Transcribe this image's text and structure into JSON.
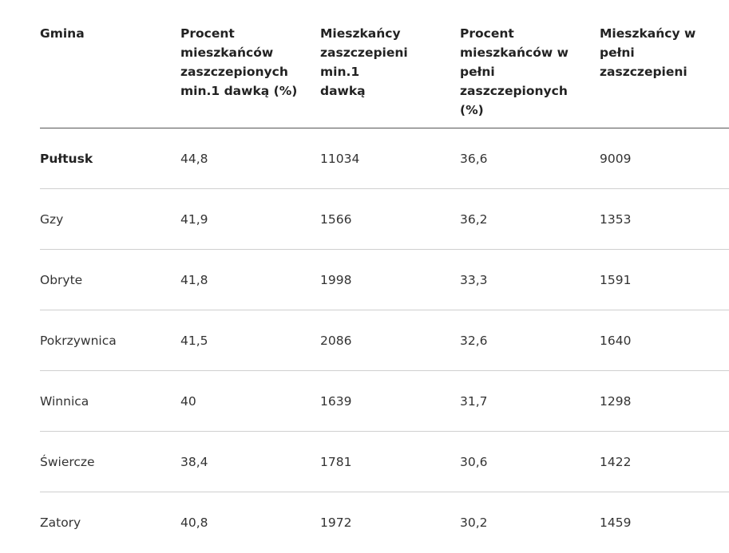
{
  "table": {
    "headers": [
      [
        "Gmina"
      ],
      [
        "Procent",
        "mieszkańców",
        "zaszczepionych",
        "min.1 dawką (%)"
      ],
      [
        "Mieszkańcy",
        "zaszczepieni min.1",
        "dawką"
      ],
      [
        "Procent",
        "mieszkańców w",
        "pełni",
        "zaszczepionych (%)"
      ],
      [
        "Mieszkańcy w pełni",
        "zaszczepieni"
      ]
    ],
    "rows": [
      [
        "Pułtusk",
        "44,8",
        "11034",
        "36,6",
        "9009"
      ],
      [
        "Gzy",
        "41,9",
        "1566",
        "36,2",
        "1353"
      ],
      [
        "Obryte",
        "41,8",
        "1998",
        "33,3",
        "1591"
      ],
      [
        "Pokrzywnica",
        "41,5",
        "2086",
        "32,6",
        "1640"
      ],
      [
        "Winnica",
        "40",
        "1639",
        "31,7",
        "1298"
      ],
      [
        "Świercze",
        "38,4",
        "1781",
        "30,6",
        "1422"
      ],
      [
        "Zatory",
        "40,8",
        "1972",
        "30,2",
        "1459"
      ]
    ]
  }
}
